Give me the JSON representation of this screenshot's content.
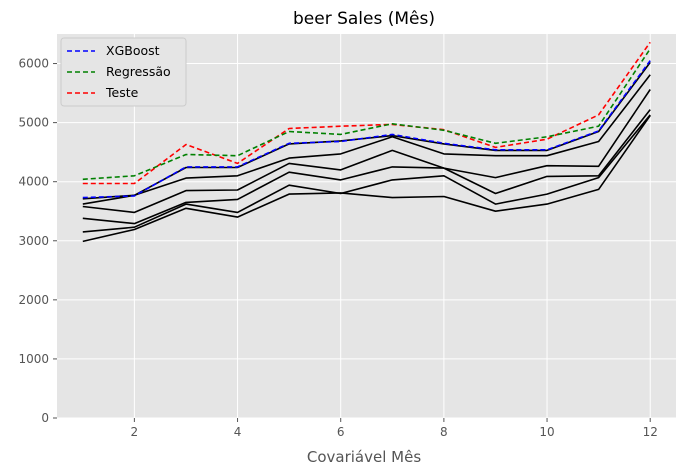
{
  "chart_data": {
    "type": "line",
    "title": "beer Sales (Mês)",
    "xlabel": "Covariável Mês",
    "ylabel": "",
    "x": [
      1,
      2,
      3,
      4,
      5,
      6,
      7,
      8,
      9,
      10,
      11,
      12
    ],
    "xlim": [
      0.5,
      12.5
    ],
    "ylim": [
      0,
      6500
    ],
    "xticks": [
      2,
      4,
      6,
      8,
      10,
      12
    ],
    "yticks": [
      0,
      1000,
      2000,
      3000,
      4000,
      5000,
      6000
    ],
    "grid": true,
    "legend_position": "top-left",
    "background": "#e5e5e5",
    "series": [
      {
        "name": "XGBoost",
        "color": "#0000ff",
        "style": "dashed",
        "values": [
          3730,
          3760,
          4250,
          4250,
          4650,
          4680,
          4800,
          4650,
          4540,
          4540,
          4860,
          6050
        ]
      },
      {
        "name": "Regressão",
        "color": "#008000",
        "style": "dashed",
        "values": [
          4040,
          4100,
          4460,
          4440,
          4850,
          4800,
          4980,
          4870,
          4650,
          4760,
          4940,
          6250
        ]
      },
      {
        "name": "Teste",
        "color": "#ff0000",
        "style": "dashed",
        "values": [
          3970,
          3970,
          4630,
          4310,
          4900,
          4940,
          4970,
          4880,
          4580,
          4720,
          5130,
          6360
        ]
      },
      {
        "color": "#000000",
        "style": "solid",
        "values": [
          3710,
          3770,
          4240,
          4240,
          4640,
          4690,
          4780,
          4640,
          4530,
          4530,
          4850,
          6020
        ]
      },
      {
        "color": "#000000",
        "style": "solid",
        "values": [
          3620,
          3770,
          4060,
          4100,
          4400,
          4470,
          4760,
          4470,
          4440,
          4440,
          4680,
          5810
        ]
      },
      {
        "color": "#000000",
        "style": "solid",
        "values": [
          3580,
          3480,
          3850,
          3860,
          4310,
          4200,
          4530,
          4230,
          4070,
          4270,
          4260,
          5560
        ]
      },
      {
        "color": "#000000",
        "style": "solid",
        "values": [
          3380,
          3290,
          3650,
          3700,
          4160,
          4030,
          4250,
          4230,
          3800,
          4090,
          4100,
          5220
        ]
      },
      {
        "color": "#000000",
        "style": "solid",
        "values": [
          3150,
          3230,
          3620,
          3480,
          3940,
          3800,
          4030,
          4100,
          3620,
          3790,
          4070,
          5130
        ]
      },
      {
        "color": "#000000",
        "style": "solid",
        "values": [
          2990,
          3190,
          3550,
          3400,
          3790,
          3810,
          3730,
          3750,
          3500,
          3620,
          3870,
          5120
        ]
      }
    ]
  }
}
